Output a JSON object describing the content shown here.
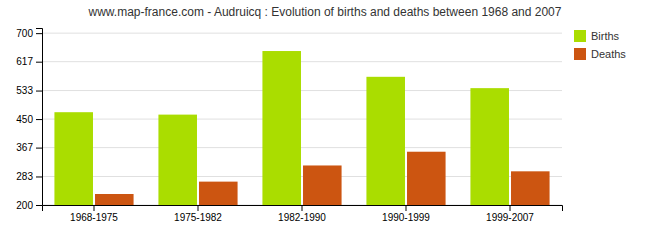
{
  "chart_data": {
    "type": "bar",
    "title": "www.map-france.com - Audruicq : Evolution of births and deaths between 1968 and 2007",
    "categories": [
      "1968-1975",
      "1975-1982",
      "1982-1990",
      "1990-1999",
      "1999-2007"
    ],
    "series": [
      {
        "name": "Births",
        "color": "#aadd00",
        "values": [
          470,
          463,
          648,
          573,
          540
        ]
      },
      {
        "name": "Deaths",
        "color": "#cc5511",
        "values": [
          232,
          268,
          315,
          355,
          298
        ]
      }
    ],
    "ylim": [
      200,
      715
    ],
    "yticks": [
      200,
      283,
      367,
      450,
      533,
      617,
      700
    ],
    "grid": true,
    "legend": "upper-right"
  }
}
